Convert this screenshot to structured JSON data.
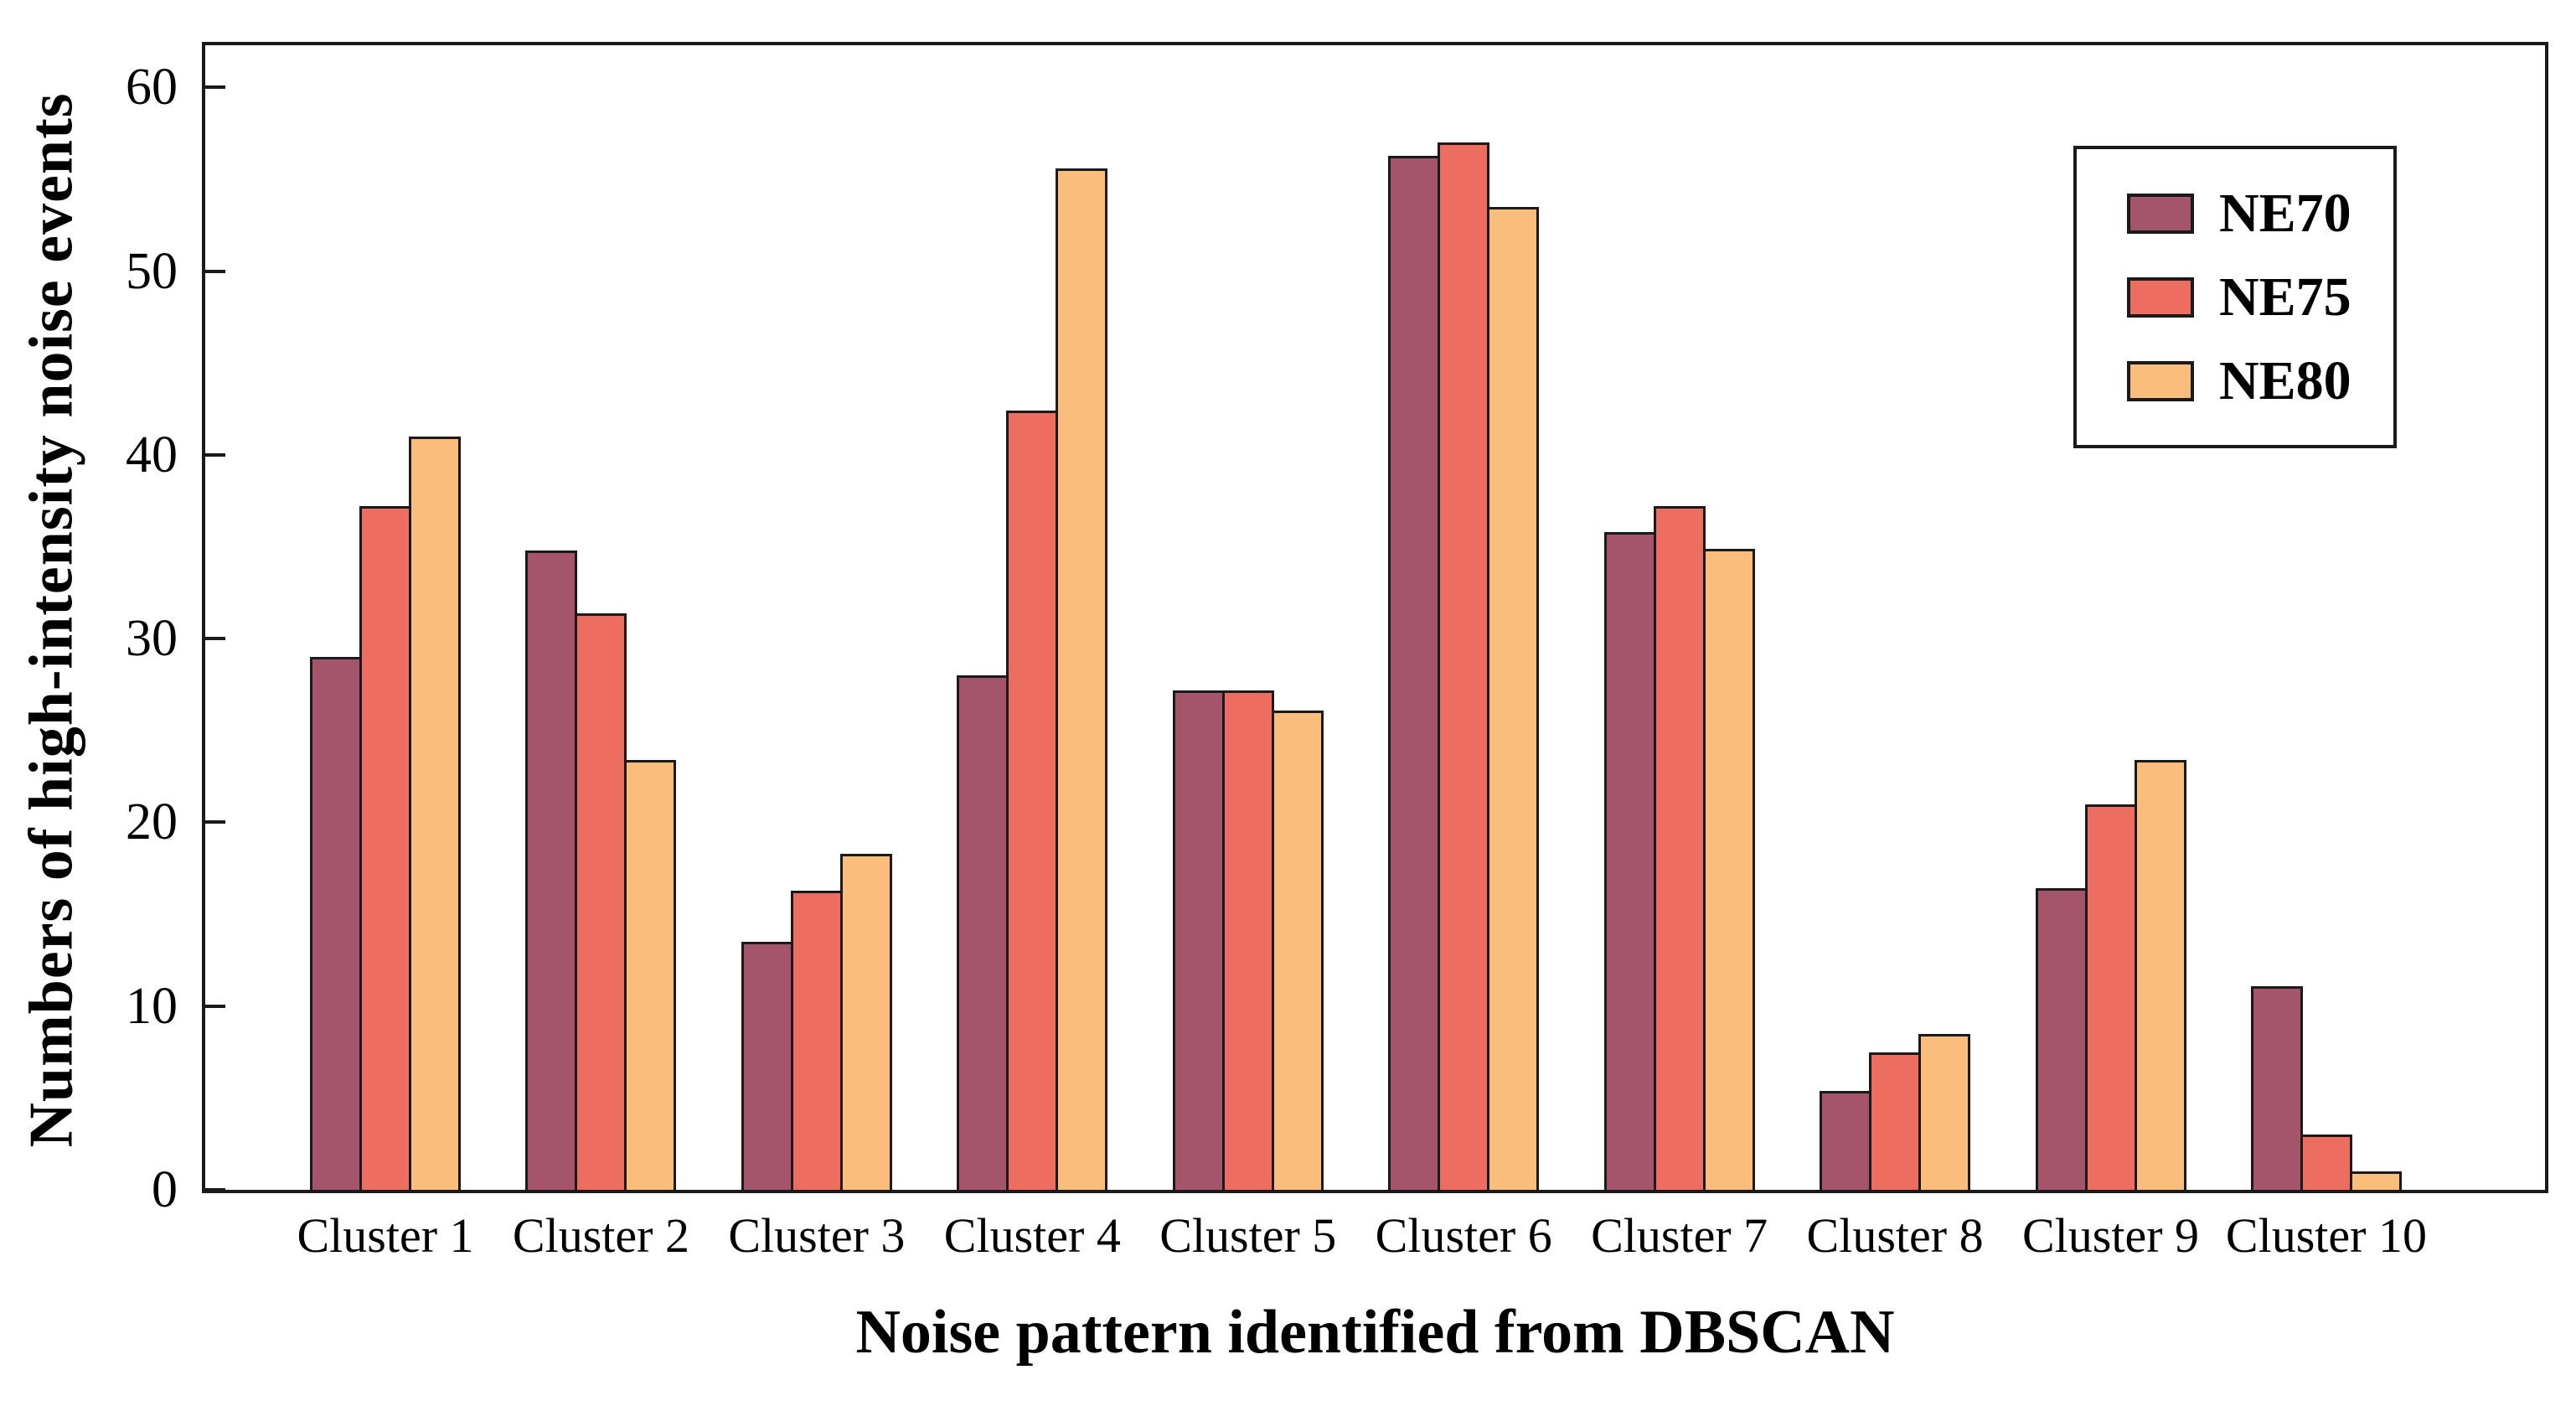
{
  "figure": {
    "y_axis_title": "Numbers of high-intensity noise events",
    "x_axis_title": "Noise pattern identified from DBSCAN"
  },
  "legend": {
    "position": "upper right",
    "entries": [
      {
        "label": "NE70",
        "color": "#A4556B"
      },
      {
        "label": "NE75",
        "color": "#ED6E61"
      },
      {
        "label": "NE80",
        "color": "#FABD7C"
      }
    ]
  },
  "colors": {
    "bar_edge": "#1a1a1a",
    "axis": "#1a1a1a",
    "background": "#ffffff",
    "ne70": "#A4556B",
    "ne75": "#ED6E61",
    "ne80": "#FABD7C"
  },
  "chart_data": {
    "type": "bar",
    "title": "",
    "xlabel": "Noise pattern identified from DBSCAN",
    "ylabel": "Numbers of high-intensity noise events",
    "categories": [
      "Cluster 1",
      "Cluster 2",
      "Cluster 3",
      "Cluster 4",
      "Cluster 5",
      "Cluster 6",
      "Cluster 7",
      "Cluster 8",
      "Cluster 9",
      "Cluster 10"
    ],
    "series": [
      {
        "name": "NE70",
        "color": "#A4556B",
        "values": [
          29.0,
          34.8,
          13.5,
          28.0,
          27.2,
          56.3,
          35.8,
          5.4,
          16.4,
          11.1
        ]
      },
      {
        "name": "NE75",
        "color": "#ED6E61",
        "values": [
          37.2,
          31.4,
          16.3,
          42.4,
          27.2,
          57.0,
          37.2,
          7.5,
          21.0,
          3.0
        ]
      },
      {
        "name": "NE80",
        "color": "#FABD7C",
        "values": [
          41.0,
          23.4,
          18.3,
          55.6,
          26.1,
          53.5,
          34.9,
          8.5,
          23.4,
          1.0
        ]
      }
    ],
    "ylim": [
      0,
      62.3
    ],
    "yticks": [
      0,
      10,
      20,
      30,
      40,
      50,
      60
    ],
    "grid": false,
    "legend_position": "upper right"
  }
}
